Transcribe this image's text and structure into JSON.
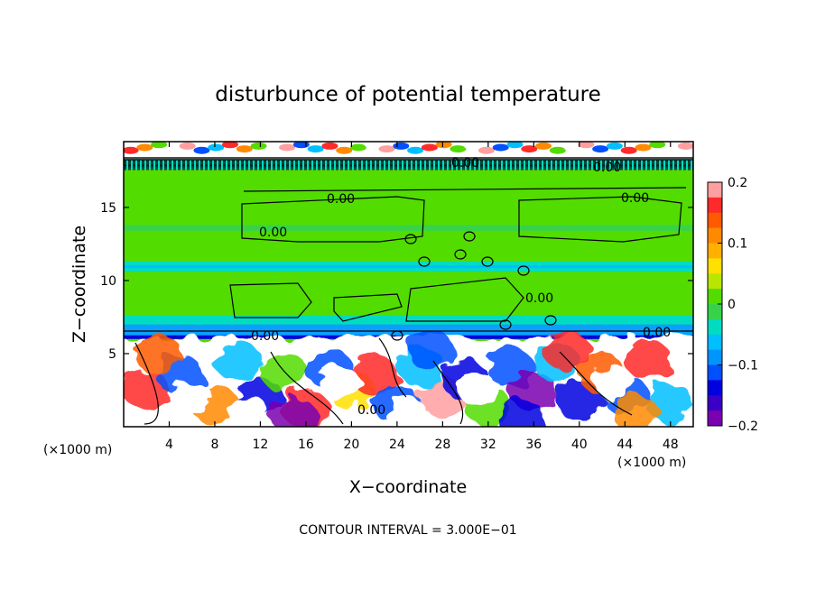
{
  "chart_data": {
    "type": "heatmap",
    "title": "disturbunce of potential temperature",
    "xlabel": "X−coordinate",
    "ylabel": "Z−coordinate",
    "x_unit_left": "(×1000 m)",
    "x_unit_right": "(×1000 m)",
    "xlim": [
      0,
      50
    ],
    "ylim": [
      0,
      19.5
    ],
    "x_ticks": [
      4,
      8,
      12,
      16,
      20,
      24,
      28,
      32,
      36,
      40,
      44,
      48
    ],
    "y_ticks": [
      5,
      10,
      15
    ],
    "colorbar": {
      "range": [
        -0.2,
        0.2
      ],
      "ticks": [
        0.2,
        0.1,
        0,
        -0.1,
        -0.2
      ],
      "tick_labels": [
        "0.2",
        "0.1",
        "0",
        "−0.1",
        "−0.2"
      ],
      "colors": [
        "#ff9fa0",
        "#ff2a2a",
        "#ff5a00",
        "#ff8a00",
        "#ffb000",
        "#ffe000",
        "#b8e600",
        "#52dc00",
        "#38d24a",
        "#00dcc0",
        "#00bfff",
        "#0094ff",
        "#0050ff",
        "#0000e0",
        "#3a00c8",
        "#7a00b0"
      ]
    },
    "contour_labels": [
      "0.00",
      "0.00",
      "0.00",
      "0.00",
      "0.00",
      "0.00",
      "0.00",
      "0.00",
      "0.00"
    ],
    "footer": "CONTOUR INTERVAL =  3.000E−01"
  }
}
